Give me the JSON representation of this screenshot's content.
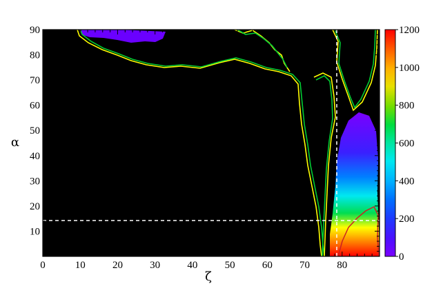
{
  "chart_data": {
    "type": "heatmap",
    "title": "",
    "xlabel": "ζ",
    "ylabel": "α",
    "xlim": [
      0,
      90
    ],
    "ylim": [
      0,
      90
    ],
    "x_ticks": [
      0,
      10,
      20,
      30,
      40,
      50,
      60,
      70,
      80
    ],
    "y_ticks": [
      10,
      20,
      30,
      40,
      50,
      60,
      70,
      80,
      90
    ],
    "background_color": "#000000",
    "colorbar": {
      "range": [
        0,
        1200
      ],
      "ticks": [
        0,
        200,
        400,
        600,
        800,
        1000,
        1200
      ],
      "colors": [
        "#7a00ff",
        "#5a10ff",
        "#3a20ff",
        "#1d3cff",
        "#0060ff",
        "#0090ff",
        "#00c0ff",
        "#00e8f0",
        "#00e6a0",
        "#00dd50",
        "#22dd00",
        "#70dd00",
        "#b8dd00",
        "#f0e000",
        "#ffc000",
        "#ff9a00",
        "#ff7000",
        "#ff4400",
        "#ff1a00",
        "#ff0000"
      ]
    },
    "reference_lines": [
      {
        "orientation": "horizontal",
        "value": 15,
        "style": "dashed",
        "color": "#ffffff"
      },
      {
        "orientation": "vertical",
        "value": 78,
        "style": "dashed",
        "color": "#ffffff"
      }
    ],
    "contours": [
      {
        "color": "#ffff00",
        "level": "outer"
      },
      {
        "color": "#00cc33",
        "level": "middle"
      },
      {
        "color": "#cc2222",
        "level": "high"
      }
    ],
    "density_regions": [
      {
        "name": "upper-left blob",
        "zeta": [
          10,
          32
        ],
        "alpha": [
          85,
          90
        ],
        "value": 40
      },
      {
        "name": "right column low",
        "zeta": [
          74,
          88
        ],
        "alpha": [
          0,
          55
        ],
        "value": 150
      },
      {
        "name": "peak",
        "zeta": [
          82,
          88
        ],
        "alpha": [
          0,
          12
        ],
        "value": 1150
      }
    ]
  }
}
